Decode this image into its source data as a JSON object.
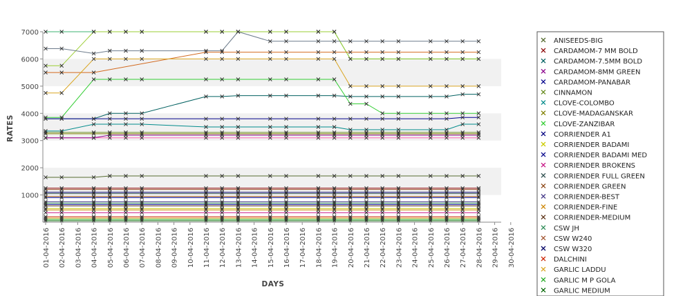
{
  "chart_data": {
    "type": "line",
    "xlabel": "DAYS",
    "ylabel": "RATES",
    "ylim": [
      0,
      7000
    ],
    "yticks": [
      1000,
      2000,
      3000,
      4000,
      5000,
      6000,
      7000
    ],
    "grid": "alternating horizontal bands",
    "legend_position": "right",
    "categories": [
      "01-04-2016",
      "02-04-2016",
      "03-04-2016",
      "04-04-2016",
      "05-04-2016",
      "06-04-2016",
      "07-04-2016",
      "08-04-2016",
      "09-04-2016",
      "10-04-2016",
      "11-04-2016",
      "12-04-2016",
      "13-04-2016",
      "14-04-2016",
      "15-04-2016",
      "16-04-2016",
      "17-04-2016",
      "18-04-2016",
      "19-04-2016",
      "20-04-2016",
      "21-04-2016",
      "22-04-2016",
      "23-04-2016",
      "24-04-2016",
      "25-04-2016",
      "26-04-2016",
      "27-04-2016",
      "28-04-2016",
      "29-04-2016",
      "30-04-2016"
    ],
    "series": [
      {
        "name": "ANISEEDS-BIG",
        "color": "#556b2f",
        "values": [
          1650,
          1650,
          null,
          1650,
          1700,
          1700,
          1700,
          null,
          null,
          null,
          1700,
          1700,
          1700,
          null,
          1700,
          1700,
          null,
          1700,
          1700,
          1700,
          1700,
          1700,
          1700,
          null,
          1700,
          1700,
          1700,
          1700,
          null,
          null
        ]
      },
      {
        "name": "CARDAMOM-7 MM BOLD",
        "color": "#8b0000",
        "values": [
          1250,
          1250,
          null,
          1250,
          1250,
          1250,
          1250,
          null,
          null,
          null,
          1250,
          1250,
          1250,
          null,
          1250,
          1250,
          null,
          1250,
          1250,
          1250,
          1250,
          1250,
          1250,
          null,
          1250,
          1250,
          1250,
          1250,
          null,
          null
        ]
      },
      {
        "name": "CARDAMOM-7.5MM BOLD",
        "color": "#006060",
        "values": [
          3800,
          3800,
          null,
          3800,
          4000,
          4000,
          4000,
          null,
          null,
          null,
          4620,
          4620,
          4650,
          null,
          4650,
          4650,
          null,
          4650,
          4650,
          4620,
          4620,
          4620,
          4620,
          null,
          4620,
          4620,
          4700,
          4700,
          null,
          null
        ]
      },
      {
        "name": "CARDAMOM-8MM GREEN",
        "color": "#8b008b",
        "values": [
          3100,
          3100,
          null,
          3100,
          3200,
          3200,
          3200,
          null,
          null,
          null,
          3200,
          3200,
          3200,
          null,
          3200,
          3200,
          null,
          3200,
          3200,
          3200,
          3200,
          3200,
          3200,
          null,
          3200,
          3200,
          3200,
          3200,
          null,
          null
        ]
      },
      {
        "name": "CARDAMOM-PANABAR",
        "color": "#00008b",
        "values": [
          3800,
          3800,
          null,
          3800,
          3800,
          3800,
          3800,
          null,
          null,
          null,
          3800,
          3800,
          3800,
          null,
          3800,
          3800,
          null,
          3800,
          3800,
          3800,
          3800,
          3800,
          3800,
          null,
          3800,
          3800,
          3850,
          3850,
          null,
          null
        ]
      },
      {
        "name": "CINNAMON",
        "color": "#6b8e23",
        "values": [
          3300,
          3300,
          null,
          3300,
          3300,
          3300,
          3300,
          null,
          null,
          null,
          3300,
          3300,
          3300,
          null,
          3300,
          3300,
          null,
          3300,
          3300,
          3300,
          3300,
          3300,
          3300,
          null,
          3300,
          3300,
          3300,
          3300,
          null,
          null
        ]
      },
      {
        "name": "CLOVE-COLOMBO",
        "color": "#008b8b",
        "values": [
          3350,
          3350,
          null,
          3600,
          3600,
          3600,
          3600,
          null,
          null,
          null,
          3500,
          3500,
          3500,
          null,
          3500,
          3500,
          null,
          3500,
          3500,
          3400,
          3400,
          3400,
          3400,
          null,
          3400,
          3400,
          3600,
          3600,
          null,
          null
        ]
      },
      {
        "name": "CLOVE-MADAGANSKAR",
        "color": "#808000",
        "values": [
          3250,
          3250,
          null,
          3250,
          3250,
          3250,
          3250,
          null,
          null,
          null,
          3250,
          3250,
          3250,
          null,
          3250,
          3250,
          null,
          3250,
          3250,
          3250,
          3250,
          3250,
          3250,
          null,
          3250,
          3250,
          3250,
          3250,
          null,
          null
        ]
      },
      {
        "name": "CLOVE-ZANZIBAR",
        "color": "#32cd32",
        "values": [
          3850,
          3850,
          null,
          5250,
          5250,
          5250,
          5250,
          null,
          null,
          null,
          5250,
          5250,
          5250,
          null,
          5250,
          5250,
          null,
          5250,
          5250,
          4350,
          4350,
          4000,
          4000,
          null,
          4000,
          4000,
          4000,
          4000,
          null,
          null
        ]
      },
      {
        "name": "CORRIENDER A1",
        "color": "#000080",
        "values": [
          900,
          900,
          null,
          900,
          900,
          900,
          900,
          null,
          null,
          null,
          900,
          900,
          900,
          null,
          900,
          900,
          null,
          900,
          900,
          900,
          900,
          900,
          900,
          null,
          900,
          900,
          900,
          900,
          null,
          null
        ]
      },
      {
        "name": "CORRIENDER BADAMI",
        "color": "#cccc00",
        "values": [
          500,
          500,
          null,
          500,
          500,
          500,
          500,
          null,
          null,
          null,
          500,
          500,
          500,
          null,
          500,
          500,
          null,
          500,
          500,
          500,
          500,
          500,
          500,
          null,
          500,
          500,
          500,
          500,
          null,
          null
        ]
      },
      {
        "name": "CORRIENDER BADAMI MED",
        "color": "#00008b",
        "values": [
          650,
          650,
          null,
          650,
          650,
          650,
          650,
          null,
          null,
          null,
          650,
          650,
          650,
          null,
          650,
          650,
          null,
          650,
          650,
          650,
          650,
          650,
          650,
          null,
          650,
          650,
          650,
          650,
          null,
          null
        ]
      },
      {
        "name": "CORRIENDER BROKENS",
        "color": "#c71585",
        "values": [
          350,
          350,
          null,
          350,
          350,
          350,
          350,
          null,
          null,
          null,
          350,
          350,
          350,
          null,
          350,
          350,
          null,
          350,
          350,
          350,
          350,
          350,
          350,
          null,
          350,
          350,
          350,
          350,
          null,
          null
        ]
      },
      {
        "name": "CORRIENDER FULL GREEN",
        "color": "#2f4f4f",
        "values": [
          1050,
          1050,
          null,
          1050,
          1050,
          1050,
          1050,
          null,
          null,
          null,
          1050,
          1050,
          1050,
          null,
          1050,
          1050,
          null,
          1050,
          1050,
          1050,
          1050,
          1050,
          1050,
          null,
          1050,
          1050,
          1050,
          1050,
          null,
          null
        ]
      },
      {
        "name": "CORRIENDER GREEN",
        "color": "#8b4513",
        "values": [
          950,
          950,
          null,
          950,
          950,
          950,
          950,
          null,
          null,
          null,
          950,
          950,
          950,
          null,
          950,
          950,
          null,
          950,
          950,
          950,
          950,
          950,
          950,
          null,
          950,
          950,
          950,
          950,
          null,
          null
        ]
      },
      {
        "name": "CORRIENDER-BEST",
        "color": "#483d8b",
        "values": [
          750,
          750,
          null,
          750,
          750,
          750,
          750,
          null,
          null,
          null,
          750,
          750,
          750,
          null,
          750,
          750,
          null,
          750,
          750,
          750,
          750,
          750,
          750,
          null,
          750,
          750,
          750,
          750,
          null,
          null
        ]
      },
      {
        "name": "CORRIENDER-FINE",
        "color": "#cd8500",
        "values": [
          450,
          450,
          null,
          450,
          450,
          450,
          450,
          null,
          null,
          null,
          450,
          450,
          450,
          null,
          450,
          450,
          null,
          450,
          450,
          450,
          450,
          450,
          450,
          null,
          450,
          450,
          450,
          450,
          null,
          null
        ]
      },
      {
        "name": "CORRIENDER-MEDIUM",
        "color": "#5c3317",
        "values": [
          600,
          600,
          null,
          600,
          600,
          600,
          600,
          null,
          null,
          null,
          600,
          600,
          600,
          null,
          600,
          600,
          null,
          600,
          600,
          600,
          600,
          600,
          600,
          null,
          600,
          600,
          600,
          600,
          null,
          null
        ]
      },
      {
        "name": "CSW JH",
        "color": "#2e8b57",
        "values": [
          700,
          700,
          null,
          700,
          700,
          700,
          700,
          null,
          null,
          null,
          700,
          700,
          700,
          null,
          700,
          700,
          null,
          700,
          700,
          700,
          700,
          700,
          700,
          null,
          700,
          700,
          700,
          700,
          null,
          null
        ]
      },
      {
        "name": "CSW W240",
        "color": "#a0522d",
        "values": [
          1200,
          1200,
          null,
          1200,
          1200,
          1200,
          1200,
          null,
          null,
          null,
          1200,
          1200,
          1200,
          null,
          1200,
          1200,
          null,
          1200,
          1200,
          1200,
          1200,
          1200,
          1200,
          null,
          1200,
          1200,
          1200,
          1200,
          null,
          null
        ]
      },
      {
        "name": "CSW W320",
        "color": "#000066",
        "values": [
          1100,
          1100,
          null,
          1100,
          1100,
          1100,
          1100,
          null,
          null,
          null,
          1100,
          1100,
          1100,
          null,
          1100,
          1100,
          null,
          1100,
          1100,
          1100,
          1100,
          1100,
          1100,
          null,
          1100,
          1100,
          1100,
          1100,
          null,
          null
        ]
      },
      {
        "name": "DALCHINI",
        "color": "#cc2200",
        "values": [
          200,
          200,
          null,
          200,
          200,
          200,
          200,
          null,
          null,
          null,
          200,
          200,
          200,
          null,
          200,
          200,
          null,
          200,
          200,
          200,
          200,
          200,
          200,
          null,
          200,
          200,
          200,
          200,
          null,
          null
        ]
      },
      {
        "name": "GARLIC LADDU",
        "color": "#daa520",
        "values": [
          150,
          150,
          null,
          150,
          150,
          150,
          150,
          null,
          null,
          null,
          150,
          150,
          150,
          null,
          150,
          150,
          null,
          150,
          150,
          150,
          150,
          150,
          150,
          null,
          150,
          150,
          150,
          150,
          null,
          null
        ]
      },
      {
        "name": "GARLIC M P GOLA",
        "color": "#22aa22",
        "values": [
          100,
          100,
          null,
          100,
          100,
          100,
          100,
          null,
          null,
          null,
          100,
          100,
          100,
          null,
          100,
          100,
          null,
          100,
          100,
          100,
          100,
          100,
          100,
          null,
          100,
          100,
          100,
          100,
          null,
          null
        ]
      },
      {
        "name": "GARLIC MEDIUM",
        "color": "#006400",
        "values": [
          50,
          50,
          null,
          50,
          50,
          50,
          50,
          null,
          null,
          null,
          50,
          50,
          50,
          null,
          50,
          50,
          null,
          50,
          50,
          50,
          50,
          50,
          50,
          null,
          50,
          50,
          50,
          50,
          null,
          null
        ]
      }
    ],
    "extra_series": [
      {
        "color": "#3cb371",
        "values": [
          7000,
          7000,
          null,
          7000,
          7000,
          7000,
          7000,
          null,
          null,
          null,
          7000,
          7000,
          7000,
          null,
          7000,
          7000,
          null,
          7000,
          7000,
          6000,
          6000,
          6000,
          6000,
          null,
          6000,
          6000,
          6000,
          6000,
          null,
          null
        ]
      },
      {
        "color": "#9acd32",
        "values": [
          5750,
          5750,
          null,
          7000,
          7000,
          7000,
          7000,
          null,
          null,
          null,
          7000,
          7000,
          7000,
          null,
          7000,
          7000,
          null,
          7000,
          7000,
          6000,
          6000,
          6000,
          6000,
          null,
          6000,
          6000,
          6000,
          6000,
          null,
          null
        ]
      },
      {
        "color": "#6c7b8b",
        "values": [
          6380,
          6380,
          null,
          6200,
          6300,
          6300,
          6300,
          null,
          null,
          null,
          6300,
          6300,
          7000,
          null,
          6650,
          6650,
          null,
          6650,
          6650,
          6650,
          6650,
          6650,
          6650,
          null,
          6650,
          6650,
          6650,
          6650,
          null,
          null
        ]
      },
      {
        "color": "#d2691e",
        "values": [
          5500,
          5500,
          null,
          5500,
          null,
          null,
          null,
          null,
          null,
          null,
          6250,
          6250,
          6250,
          null,
          6250,
          6250,
          null,
          6250,
          6250,
          6250,
          6250,
          6250,
          6250,
          null,
          6250,
          6250,
          6250,
          6250,
          null,
          null
        ]
      },
      {
        "color": "#daa520",
        "values": [
          4750,
          4750,
          null,
          6000,
          6000,
          6000,
          6000,
          null,
          null,
          null,
          6000,
          6000,
          6000,
          null,
          6000,
          6000,
          null,
          6000,
          6000,
          5000,
          5000,
          5000,
          5000,
          null,
          5000,
          5000,
          5000,
          5000,
          null,
          null
        ]
      },
      {
        "color": "#ff69b4",
        "values": [
          3100,
          3100,
          null,
          3100,
          3100,
          3100,
          3100,
          null,
          null,
          null,
          3100,
          3100,
          3100,
          null,
          3100,
          3100,
          null,
          3100,
          3100,
          3100,
          3100,
          3100,
          3100,
          null,
          3100,
          3100,
          3100,
          3100,
          null,
          null
        ]
      }
    ]
  }
}
